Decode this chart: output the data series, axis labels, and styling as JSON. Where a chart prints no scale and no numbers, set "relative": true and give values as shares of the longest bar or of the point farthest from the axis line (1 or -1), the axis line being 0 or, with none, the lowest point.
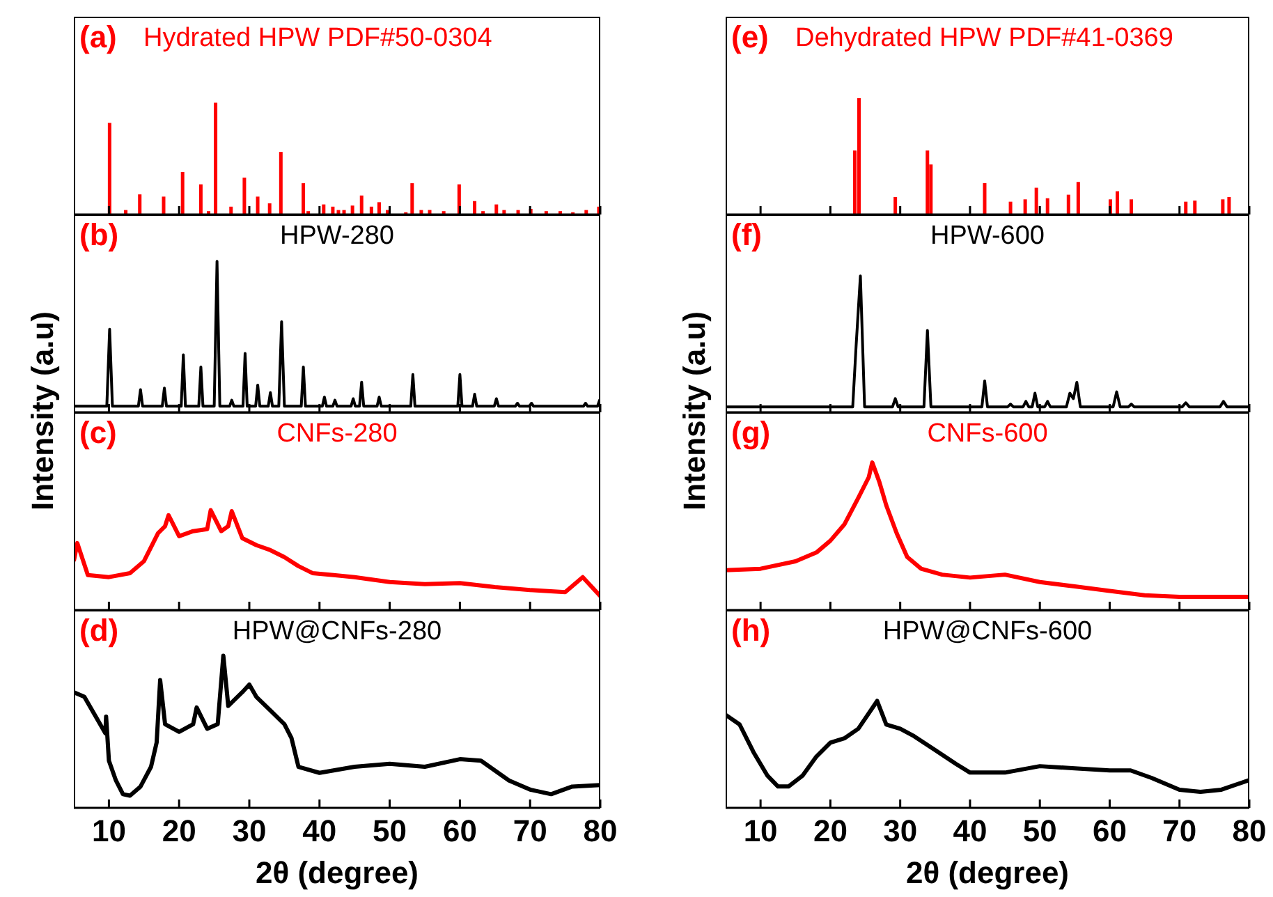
{
  "chart_data": [
    {
      "type": "bar",
      "title": "(a)",
      "subtitle": "Hydrated HPW PDF#50-0304",
      "ylabel": "Intensity (a.u)",
      "relative": true,
      "xlim": [
        5,
        80
      ],
      "xticks": [
        10,
        20,
        30,
        40,
        50,
        60,
        70,
        80
      ],
      "tick_labels": false,
      "series": [
        {
          "color": "#ff0000",
          "x": [
            10.0,
            12.3,
            14.3,
            17.7,
            20.4,
            23.0,
            24.1,
            25.1,
            27.3,
            29.2,
            31.1,
            32.8,
            34.4,
            37.6,
            38.3,
            40.5,
            41.8,
            42.6,
            43.4,
            44.6,
            45.9,
            47.3,
            48.4,
            49.6,
            52.2,
            53.1,
            54.4,
            55.6,
            57.6,
            59.8,
            62.0,
            63.2,
            65.1,
            66.2,
            68.2,
            70.0,
            72.2,
            74.2,
            76.0,
            77.9,
            79.7
          ],
          "values": [
            0.82,
            0.04,
            0.18,
            0.16,
            0.38,
            0.27,
            0.03,
            1.0,
            0.07,
            0.33,
            0.16,
            0.1,
            0.56,
            0.28,
            0.03,
            0.09,
            0.07,
            0.04,
            0.04,
            0.08,
            0.17,
            0.07,
            0.11,
            0.04,
            0.02,
            0.28,
            0.04,
            0.04,
            0.03,
            0.27,
            0.12,
            0.03,
            0.09,
            0.04,
            0.04,
            0.05,
            0.03,
            0.03,
            0.02,
            0.04,
            0.07
          ]
        }
      ]
    },
    {
      "type": "line",
      "title": "(b)",
      "subtitle": "HPW-280",
      "relative": true,
      "xlim": [
        5,
        80
      ],
      "xticks": [
        10,
        20,
        30,
        40,
        50,
        60,
        70,
        80
      ],
      "tick_labels": false,
      "series": [
        {
          "color": "#000000",
          "x": [
            5,
            9.7,
            10.1,
            10.5,
            14.2,
            14.5,
            14.8,
            17.6,
            17.9,
            18.2,
            20.3,
            20.6,
            20.9,
            22.8,
            23.1,
            23.4,
            25.0,
            25.4,
            25.8,
            27.2,
            27.5,
            27.8,
            29.1,
            29.4,
            29.7,
            30.9,
            31.2,
            31.5,
            32.7,
            33.0,
            33.3,
            34.2,
            34.6,
            35.0,
            37.4,
            37.7,
            38.0,
            40.4,
            40.7,
            41.0,
            41.9,
            42.2,
            42.5,
            44.5,
            44.8,
            45.1,
            45.7,
            46.0,
            46.3,
            48.2,
            48.5,
            48.8,
            53.0,
            53.3,
            53.6,
            59.7,
            60.0,
            60.3,
            61.8,
            62.1,
            62.4,
            64.9,
            65.2,
            65.5,
            67.9,
            68.2,
            68.5,
            69.9,
            70.2,
            70.5,
            77.6,
            77.9,
            78.2,
            79.6,
            79.9,
            80
          ],
          "values": [
            0.04,
            0.04,
            0.55,
            0.04,
            0.04,
            0.15,
            0.04,
            0.04,
            0.16,
            0.04,
            0.04,
            0.38,
            0.04,
            0.04,
            0.3,
            0.04,
            0.04,
            1.0,
            0.04,
            0.04,
            0.08,
            0.04,
            0.04,
            0.39,
            0.04,
            0.04,
            0.18,
            0.04,
            0.04,
            0.13,
            0.04,
            0.04,
            0.6,
            0.04,
            0.04,
            0.3,
            0.04,
            0.04,
            0.1,
            0.04,
            0.04,
            0.08,
            0.04,
            0.04,
            0.09,
            0.04,
            0.04,
            0.2,
            0.04,
            0.04,
            0.1,
            0.04,
            0.04,
            0.25,
            0.04,
            0.04,
            0.25,
            0.04,
            0.04,
            0.12,
            0.04,
            0.04,
            0.09,
            0.04,
            0.04,
            0.06,
            0.04,
            0.04,
            0.06,
            0.04,
            0.04,
            0.06,
            0.04,
            0.04,
            0.08,
            0.05
          ]
        }
      ]
    },
    {
      "type": "line",
      "title": "(c)",
      "subtitle": "CNFs-280",
      "relative": true,
      "xlim": [
        5,
        80
      ],
      "xticks": [
        10,
        20,
        30,
        40,
        50,
        60,
        70,
        80
      ],
      "tick_labels": false,
      "series": [
        {
          "color": "#ff0000",
          "x": [
            5,
            5.5,
            7,
            10,
            13,
            15,
            17,
            18,
            18.5,
            20,
            22,
            24,
            24.5,
            26,
            27,
            27.5,
            29,
            31,
            33,
            35,
            37,
            39,
            42,
            45,
            50,
            55,
            60,
            65,
            70,
            75,
            77.5,
            80
          ],
          "values": [
            0.49,
            0.67,
            0.35,
            0.33,
            0.37,
            0.49,
            0.77,
            0.84,
            0.95,
            0.74,
            0.79,
            0.81,
            1.0,
            0.79,
            0.84,
            0.99,
            0.72,
            0.65,
            0.6,
            0.53,
            0.44,
            0.37,
            0.35,
            0.33,
            0.28,
            0.26,
            0.27,
            0.23,
            0.2,
            0.18,
            0.33,
            0.14
          ]
        }
      ]
    },
    {
      "type": "line",
      "title": "(d)",
      "subtitle": "HPW@CNFs-280",
      "xlabel": "2θ (degree)",
      "relative": true,
      "xlim": [
        5,
        80
      ],
      "xticks": [
        10,
        20,
        30,
        40,
        50,
        60,
        70,
        80
      ],
      "tick_labels": "x",
      "series": [
        {
          "color": "#000000",
          "x": [
            5,
            6.5,
            8,
            9.5,
            9.6,
            10,
            11,
            12,
            13,
            14.5,
            16,
            16.8,
            17.3,
            18,
            20,
            22,
            22.5,
            24,
            25.5,
            26.3,
            27,
            29,
            30,
            31,
            33,
            35,
            36,
            37,
            40,
            45,
            50,
            55,
            60,
            63,
            67,
            70,
            73,
            76,
            80
          ],
          "values": [
            0.76,
            0.73,
            0.61,
            0.49,
            0.6,
            0.31,
            0.18,
            0.09,
            0.08,
            0.14,
            0.27,
            0.43,
            0.84,
            0.55,
            0.5,
            0.55,
            0.66,
            0.52,
            0.55,
            1.0,
            0.67,
            0.76,
            0.81,
            0.73,
            0.64,
            0.55,
            0.46,
            0.27,
            0.23,
            0.27,
            0.29,
            0.27,
            0.32,
            0.31,
            0.18,
            0.12,
            0.09,
            0.14,
            0.15
          ]
        }
      ]
    },
    {
      "type": "bar",
      "title": "(e)",
      "subtitle": "Dehydrated HPW PDF#41-0369",
      "ylabel": "Intensity (a.u)",
      "relative": true,
      "xlim": [
        5,
        80
      ],
      "xticks": [
        10,
        20,
        30,
        40,
        50,
        60,
        70,
        80
      ],
      "tick_labels": false,
      "series": [
        {
          "color": "#ff0000",
          "x": [
            23.5,
            24.1,
            29.3,
            33.9,
            34.4,
            42.1,
            45.8,
            47.9,
            49.5,
            51.1,
            54.1,
            55.5,
            60.1,
            61.1,
            63.1,
            70.9,
            72.2,
            76.2,
            77.1
          ],
          "values": [
            0.55,
            1.0,
            0.15,
            0.55,
            0.43,
            0.27,
            0.11,
            0.13,
            0.23,
            0.14,
            0.17,
            0.28,
            0.13,
            0.2,
            0.13,
            0.11,
            0.12,
            0.13,
            0.15
          ]
        }
      ]
    },
    {
      "type": "line",
      "title": "(f)",
      "subtitle": "HPW-600",
      "relative": true,
      "xlim": [
        5,
        80
      ],
      "xticks": [
        10,
        20,
        30,
        40,
        50,
        60,
        70,
        80
      ],
      "tick_labels": false,
      "series": [
        {
          "color": "#000000",
          "x": [
            5,
            23.2,
            23.7,
            24.3,
            24.9,
            28.9,
            29.3,
            29.7,
            33.4,
            33.9,
            34.4,
            41.7,
            42.1,
            42.5,
            45.4,
            45.8,
            46.2,
            47.6,
            48.0,
            48.4,
            48.9,
            49.3,
            49.7,
            50.7,
            51.1,
            51.5,
            53.8,
            54.3,
            54.8,
            55.3,
            55.8,
            60.5,
            61.0,
            61.5,
            62.7,
            63.1,
            63.5,
            70.4,
            70.9,
            71.4,
            75.8,
            76.3,
            76.8,
            80
          ],
          "values": [
            0.04,
            0.04,
            0.5,
            1.0,
            0.04,
            0.04,
            0.1,
            0.04,
            0.04,
            0.6,
            0.04,
            0.04,
            0.23,
            0.04,
            0.04,
            0.06,
            0.04,
            0.04,
            0.08,
            0.04,
            0.04,
            0.14,
            0.04,
            0.04,
            0.08,
            0.04,
            0.04,
            0.14,
            0.1,
            0.22,
            0.04,
            0.04,
            0.15,
            0.04,
            0.04,
            0.06,
            0.04,
            0.04,
            0.07,
            0.04,
            0.04,
            0.08,
            0.04,
            0.04
          ]
        }
      ]
    },
    {
      "type": "line",
      "title": "(g)",
      "subtitle": "CNFs-600",
      "relative": true,
      "xlim": [
        5,
        80
      ],
      "xticks": [
        10,
        20,
        30,
        40,
        50,
        60,
        70,
        80
      ],
      "tick_labels": false,
      "series": [
        {
          "color": "#ff0000",
          "x": [
            5,
            10,
            15,
            18,
            20,
            22,
            24,
            25.5,
            26,
            27,
            28,
            29.5,
            31,
            33,
            36,
            40,
            45,
            50,
            55,
            60,
            65,
            70,
            75,
            80
          ],
          "values": [
            0.27,
            0.28,
            0.33,
            0.39,
            0.47,
            0.58,
            0.76,
            0.9,
            1.0,
            0.87,
            0.71,
            0.52,
            0.36,
            0.28,
            0.24,
            0.22,
            0.24,
            0.19,
            0.16,
            0.13,
            0.1,
            0.09,
            0.09,
            0.09
          ]
        }
      ]
    },
    {
      "type": "line",
      "title": "(h)",
      "subtitle": "HPW@CNFs-600",
      "xlabel": "2θ (degree)",
      "relative": true,
      "xlim": [
        5,
        80
      ],
      "xticks": [
        10,
        20,
        30,
        40,
        50,
        60,
        70,
        80
      ],
      "tick_labels": "x",
      "series": [
        {
          "color": "#000000",
          "x": [
            5,
            7,
            9,
            11,
            12.5,
            14,
            16,
            18,
            20,
            22,
            24,
            26.7,
            28,
            30,
            32,
            35,
            38,
            40,
            45,
            50,
            55,
            60,
            63,
            66,
            70,
            73,
            76,
            80
          ],
          "values": [
            0.87,
            0.78,
            0.52,
            0.3,
            0.2,
            0.2,
            0.3,
            0.48,
            0.61,
            0.65,
            0.74,
            1.0,
            0.78,
            0.74,
            0.67,
            0.54,
            0.41,
            0.33,
            0.33,
            0.39,
            0.37,
            0.35,
            0.35,
            0.28,
            0.17,
            0.15,
            0.17,
            0.26
          ]
        }
      ]
    }
  ]
}
